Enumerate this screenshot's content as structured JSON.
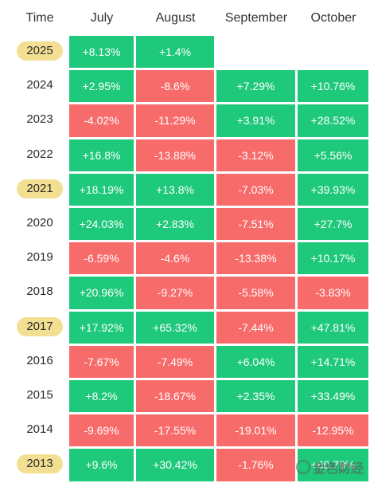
{
  "chart_data": {
    "type": "table",
    "columns": [
      "Time",
      "July",
      "August",
      "September",
      "October"
    ],
    "rows": [
      {
        "year": "2025",
        "highlight": true,
        "values": [
          "+8.13%",
          "+1.4%",
          "",
          ""
        ]
      },
      {
        "year": "2024",
        "highlight": false,
        "values": [
          "+2.95%",
          "-8.6%",
          "+7.29%",
          "+10.76%"
        ]
      },
      {
        "year": "2023",
        "highlight": false,
        "values": [
          "-4.02%",
          "-11.29%",
          "+3.91%",
          "+28.52%"
        ]
      },
      {
        "year": "2022",
        "highlight": false,
        "values": [
          "+16.8%",
          "-13.88%",
          "-3.12%",
          "+5.56%"
        ]
      },
      {
        "year": "2021",
        "highlight": true,
        "values": [
          "+18.19%",
          "+13.8%",
          "-7.03%",
          "+39.93%"
        ]
      },
      {
        "year": "2020",
        "highlight": false,
        "values": [
          "+24.03%",
          "+2.83%",
          "-7.51%",
          "+27.7%"
        ]
      },
      {
        "year": "2019",
        "highlight": false,
        "values": [
          "-6.59%",
          "-4.6%",
          "-13.38%",
          "+10.17%"
        ]
      },
      {
        "year": "2018",
        "highlight": false,
        "values": [
          "+20.96%",
          "-9.27%",
          "-5.58%",
          "-3.83%"
        ]
      },
      {
        "year": "2017",
        "highlight": true,
        "values": [
          "+17.92%",
          "+65.32%",
          "-7.44%",
          "+47.81%"
        ]
      },
      {
        "year": "2016",
        "highlight": false,
        "values": [
          "-7.67%",
          "-7.49%",
          "+6.04%",
          "+14.71%"
        ]
      },
      {
        "year": "2015",
        "highlight": false,
        "values": [
          "+8.2%",
          "-18.67%",
          "+2.35%",
          "+33.49%"
        ]
      },
      {
        "year": "2014",
        "highlight": false,
        "values": [
          "-9.69%",
          "-17.55%",
          "-19.01%",
          "-12.95%"
        ]
      },
      {
        "year": "2013",
        "highlight": true,
        "values": [
          "+9.6%",
          "+30.42%",
          "-1.76%",
          "+60.79%"
        ]
      }
    ]
  },
  "colors": {
    "positive": "#1fc97b",
    "negative": "#f76b6b",
    "highlight": "#f3df91",
    "text": "#2a2a2a"
  },
  "watermark": {
    "text": "金色财经"
  }
}
